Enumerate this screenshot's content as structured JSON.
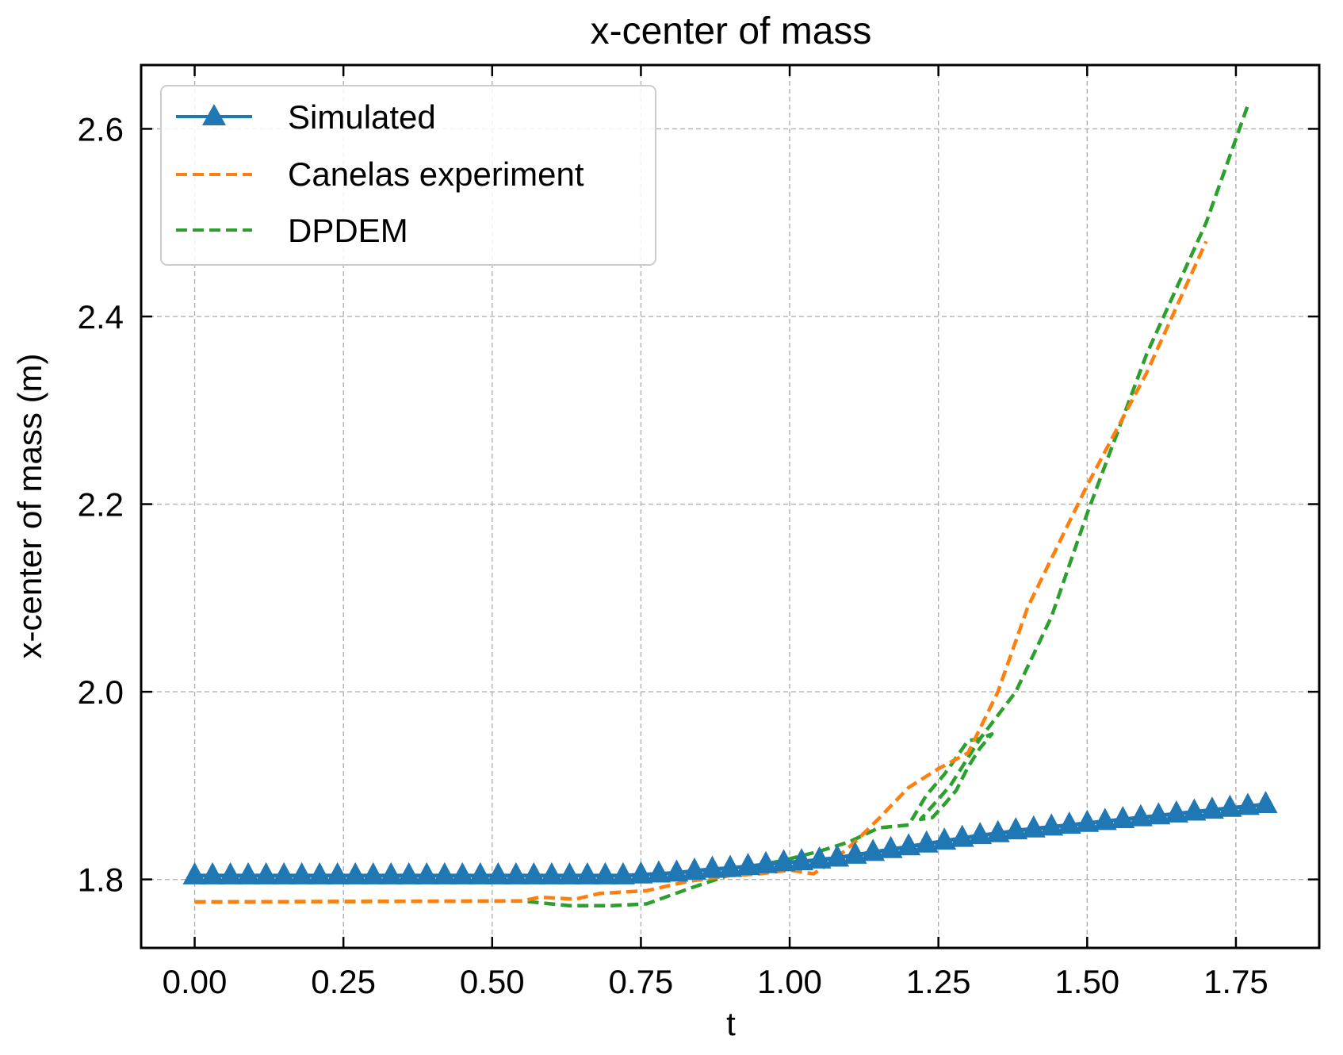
{
  "chart_data": {
    "type": "line",
    "title": "x-center of mass",
    "xlabel": "t",
    "ylabel": "x-center of mass (m)",
    "xlim": [
      -0.09,
      1.89
    ],
    "ylim": [
      1.727,
      2.668
    ],
    "xticks": [
      0.0,
      0.25,
      0.5,
      0.75,
      1.0,
      1.25,
      1.5,
      1.75
    ],
    "xtick_labels": [
      "0.00",
      "0.25",
      "0.50",
      "0.75",
      "1.00",
      "1.25",
      "1.50",
      "1.75"
    ],
    "yticks": [
      1.8,
      2.0,
      2.2,
      2.4,
      2.6
    ],
    "ytick_labels": [
      "1.8",
      "2.0",
      "2.2",
      "2.4",
      "2.6"
    ],
    "grid": true,
    "legend_position": "top-left",
    "series": [
      {
        "name": "Simulated",
        "color": "#1f77b4",
        "style": "solid",
        "marker": "triangle-up",
        "x": [
          0.0,
          0.03,
          0.06,
          0.09,
          0.12,
          0.15,
          0.18,
          0.21,
          0.24,
          0.27,
          0.3,
          0.33,
          0.36,
          0.39,
          0.42,
          0.45,
          0.48,
          0.51,
          0.54,
          0.57,
          0.6,
          0.63,
          0.66,
          0.69,
          0.72,
          0.75,
          0.78,
          0.81,
          0.84,
          0.87,
          0.9,
          0.93,
          0.96,
          0.99,
          1.02,
          1.05,
          1.08,
          1.11,
          1.14,
          1.17,
          1.2,
          1.23,
          1.26,
          1.29,
          1.32,
          1.35,
          1.38,
          1.41,
          1.44,
          1.47,
          1.5,
          1.53,
          1.56,
          1.59,
          1.62,
          1.65,
          1.68,
          1.71,
          1.74,
          1.77,
          1.8
        ],
        "y": [
          1.804,
          1.804,
          1.804,
          1.804,
          1.804,
          1.804,
          1.804,
          1.804,
          1.804,
          1.804,
          1.804,
          1.804,
          1.804,
          1.804,
          1.804,
          1.804,
          1.804,
          1.804,
          1.804,
          1.804,
          1.804,
          1.804,
          1.804,
          1.804,
          1.804,
          1.805,
          1.806,
          1.807,
          1.809,
          1.811,
          1.812,
          1.814,
          1.816,
          1.818,
          1.819,
          1.821,
          1.823,
          1.826,
          1.829,
          1.832,
          1.835,
          1.838,
          1.841,
          1.844,
          1.847,
          1.849,
          1.852,
          1.854,
          1.856,
          1.858,
          1.86,
          1.862,
          1.864,
          1.866,
          1.868,
          1.87,
          1.872,
          1.874,
          1.876,
          1.878,
          1.88
        ]
      },
      {
        "name": "Canelas experiment",
        "color": "#ff7f0e",
        "style": "dashed",
        "x": [
          0.0,
          0.55,
          0.58,
          0.64,
          0.68,
          0.76,
          0.83,
          0.9,
          0.95,
          1.0,
          1.04,
          1.07,
          1.11,
          1.15,
          1.2,
          1.25,
          1.3,
          1.35,
          1.4,
          1.5,
          1.6,
          1.7
        ],
        "y": [
          1.776,
          1.777,
          1.781,
          1.779,
          1.785,
          1.788,
          1.798,
          1.804,
          1.806,
          1.81,
          1.806,
          1.818,
          1.84,
          1.865,
          1.898,
          1.918,
          1.935,
          2.0,
          2.09,
          2.22,
          2.34,
          2.48
        ]
      },
      {
        "name": "DPDEM",
        "color": "#2ca02c",
        "style": "dashed",
        "x": [
          0.0,
          0.55,
          0.63,
          0.7,
          0.76,
          0.83,
          0.9,
          0.95,
          1.0,
          1.05,
          1.1,
          1.15,
          1.2,
          1.23,
          1.26,
          1.3,
          1.32,
          1.34,
          1.32,
          1.3,
          1.28,
          1.26,
          1.24,
          1.22,
          1.27,
          1.32,
          1.38,
          1.44,
          1.5,
          1.6,
          1.7,
          1.77
        ],
        "y": [
          1.776,
          1.777,
          1.772,
          1.772,
          1.774,
          1.79,
          1.805,
          1.815,
          1.822,
          1.83,
          1.84,
          1.855,
          1.858,
          1.89,
          1.912,
          1.948,
          1.95,
          1.955,
          1.94,
          1.92,
          1.895,
          1.88,
          1.866,
          1.864,
          1.9,
          1.95,
          2.0,
          2.08,
          2.19,
          2.36,
          2.5,
          2.625
        ]
      }
    ]
  }
}
